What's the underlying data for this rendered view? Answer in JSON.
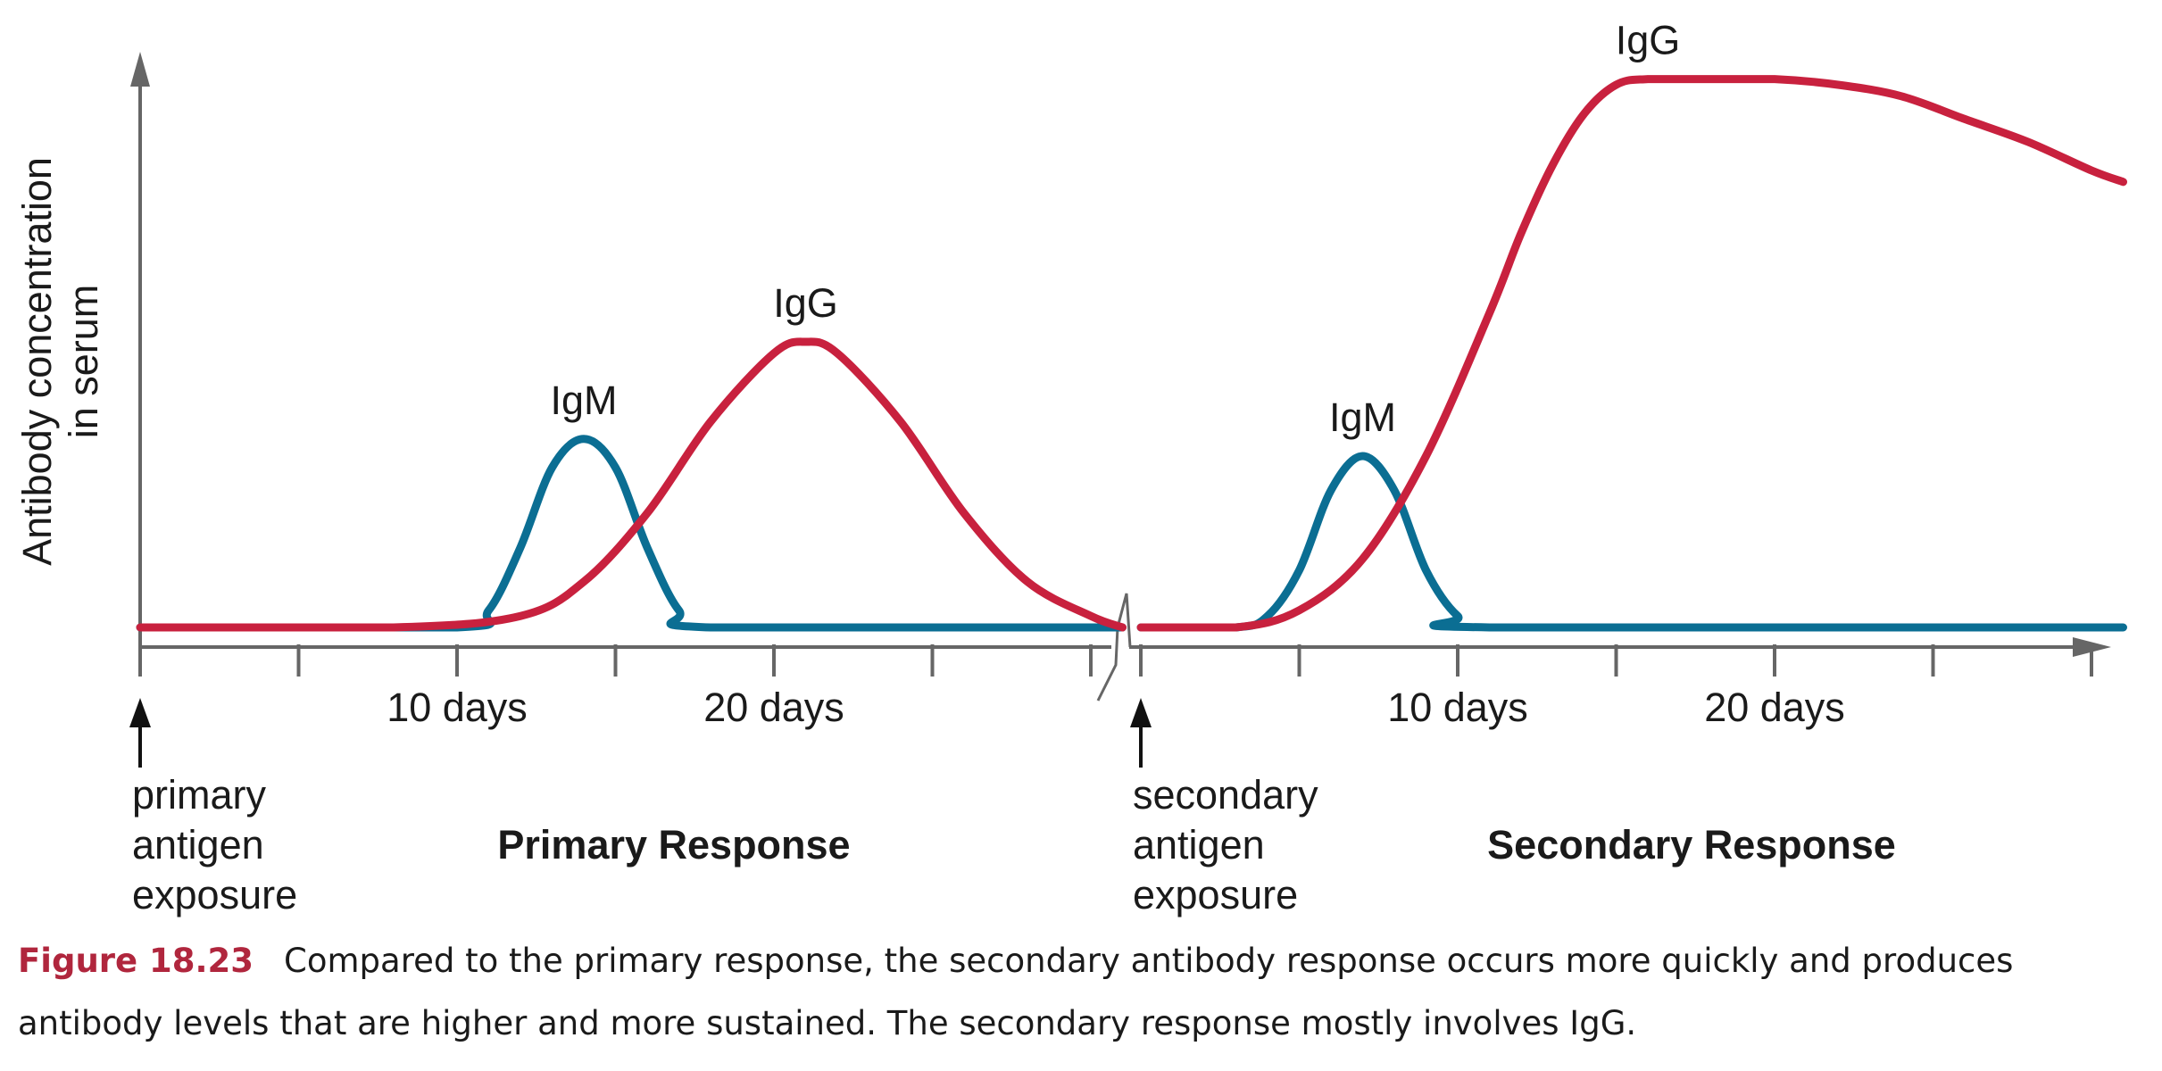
{
  "chart_data": {
    "type": "line",
    "ylabel_lines": [
      "Antibody concentration",
      "in serum"
    ],
    "axis_break": true,
    "colors": {
      "IgM": "#0b6e93",
      "IgG": "#c8213e",
      "axis": "#666666"
    },
    "panels": [
      {
        "id": "primary",
        "section_label": "Primary Response",
        "exposure_label": [
          "primary",
          "antigen",
          "exposure"
        ],
        "x_range": [
          0,
          31
        ],
        "tick_every": 5,
        "tick_labels": [
          {
            "x": 10,
            "text": "10 days"
          },
          {
            "x": 20,
            "text": "20 days"
          }
        ],
        "series": [
          {
            "name": "IgM",
            "peak_x": 14,
            "peak_y": 0.33,
            "x": [
              0,
              10,
              11,
              12,
              13,
              14,
              15,
              16,
              17,
              18,
              31
            ],
            "y": [
              0,
              0,
              0.03,
              0.14,
              0.28,
              0.33,
              0.28,
              0.14,
              0.03,
              0,
              0
            ]
          },
          {
            "name": "IgG",
            "peak_x": 21,
            "peak_y": 0.5,
            "x": [
              0,
              8,
              12,
              14,
              16,
              18,
              20,
              21,
              22,
              24,
              26,
              28,
              30,
              31
            ],
            "y": [
              0,
              0,
              0.02,
              0.08,
              0.2,
              0.36,
              0.48,
              0.5,
              0.48,
              0.36,
              0.2,
              0.08,
              0.02,
              0
            ]
          }
        ]
      },
      {
        "id": "secondary",
        "section_label": "Secondary Response",
        "exposure_label": [
          "secondary",
          "antigen",
          "exposure"
        ],
        "x_range": [
          0,
          31
        ],
        "tick_every": 5,
        "tick_labels": [
          {
            "x": 10,
            "text": "10 days"
          },
          {
            "x": 20,
            "text": "20 days"
          }
        ],
        "series": [
          {
            "name": "IgM",
            "peak_x": 7,
            "peak_y": 0.3,
            "x": [
              0,
              3,
              4,
              5,
              6,
              7,
              8,
              9,
              10,
              11,
              31
            ],
            "y": [
              0,
              0,
              0.02,
              0.1,
              0.24,
              0.3,
              0.24,
              0.1,
              0.02,
              0,
              0
            ]
          },
          {
            "name": "IgG",
            "peak_x": 16,
            "peak_y": 0.96,
            "x": [
              0,
              3,
              5,
              7,
              9,
              11,
              12,
              13,
              14,
              15,
              16,
              18,
              20,
              22,
              24,
              26,
              28,
              30,
              31
            ],
            "y": [
              0,
              0,
              0.03,
              0.12,
              0.3,
              0.55,
              0.69,
              0.81,
              0.9,
              0.95,
              0.96,
              0.96,
              0.96,
              0.95,
              0.93,
              0.89,
              0.85,
              0.8,
              0.78
            ]
          }
        ]
      }
    ]
  },
  "caption": {
    "figure_number": "Figure 18.23",
    "text": "Compared to the primary response, the secondary antibody response occurs more quickly and produces antibody levels that are higher and more sustained. The secondary response mostly involves IgG."
  }
}
